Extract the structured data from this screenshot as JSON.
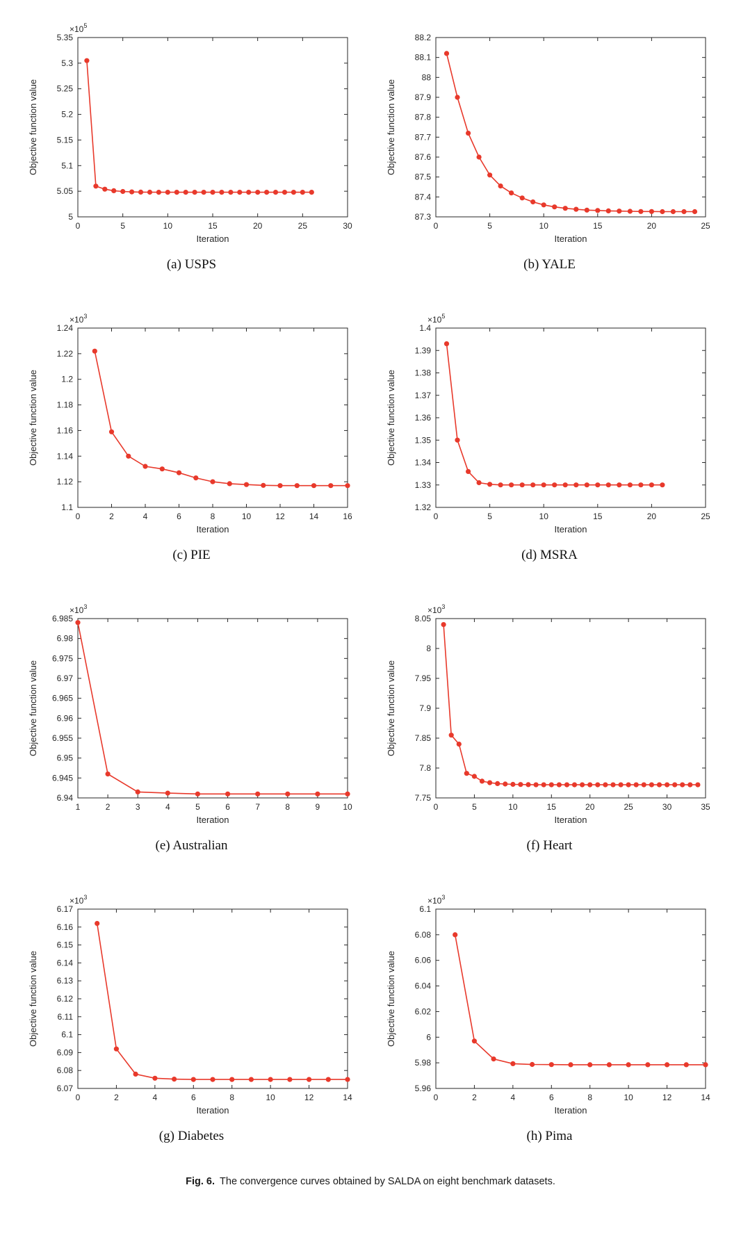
{
  "figure": {
    "caption_prefix": "Fig. 6.",
    "caption_text": "The convergence curves obtained by SALDA on eight benchmark datasets."
  },
  "style": {
    "line_color": "#e8392b",
    "marker_color": "#e8392b",
    "axis_color": "#262626"
  },
  "chart_data": [
    {
      "id": "usps",
      "type": "line",
      "label": "(a) USPS",
      "xlabel": "Iteration",
      "ylabel": "Objective function value",
      "y_exponent": "5",
      "xlim": [
        0,
        30
      ],
      "ylim": [
        5,
        5.35
      ],
      "xticks": [
        0,
        5,
        10,
        15,
        20,
        25,
        30
      ],
      "xtick_labels": [
        "0",
        "5",
        "10",
        "15",
        "20",
        "25",
        "30"
      ],
      "yticks": [
        5,
        5.05,
        5.1,
        5.15,
        5.2,
        5.25,
        5.3,
        5.35
      ],
      "ytick_labels": [
        "5",
        "5.05",
        "5.1",
        "5.15",
        "5.2",
        "5.25",
        "5.3",
        "5.35"
      ],
      "x_start": 1,
      "x_step": 1,
      "values": [
        5.305,
        5.06,
        5.054,
        5.051,
        5.0495,
        5.0487,
        5.0483,
        5.0481,
        5.048,
        5.048,
        5.048,
        5.048,
        5.048,
        5.048,
        5.048,
        5.048,
        5.048,
        5.048,
        5.048,
        5.048,
        5.048,
        5.048,
        5.048,
        5.048,
        5.048,
        5.048
      ]
    },
    {
      "id": "yale",
      "type": "line",
      "label": "(b) YALE",
      "xlabel": "Iteration",
      "ylabel": "Objective function value",
      "y_exponent": null,
      "xlim": [
        0,
        25
      ],
      "ylim": [
        87.3,
        88.2
      ],
      "xticks": [
        0,
        5,
        10,
        15,
        20,
        25
      ],
      "xtick_labels": [
        "0",
        "5",
        "10",
        "15",
        "20",
        "25"
      ],
      "yticks": [
        87.3,
        87.4,
        87.5,
        87.6,
        87.7,
        87.8,
        87.9,
        88,
        88.1,
        88.2
      ],
      "ytick_labels": [
        "87.3",
        "87.4",
        "87.5",
        "87.6",
        "87.7",
        "87.8",
        "87.9",
        "88",
        "88.1",
        "88.2"
      ],
      "x_start": 1,
      "x_step": 1,
      "values": [
        88.12,
        87.9,
        87.72,
        87.6,
        87.51,
        87.455,
        87.42,
        87.395,
        87.375,
        87.36,
        87.35,
        87.343,
        87.338,
        87.334,
        87.332,
        87.33,
        87.329,
        87.328,
        87.327,
        87.327,
        87.326,
        87.326,
        87.326,
        87.326
      ]
    },
    {
      "id": "pie",
      "type": "line",
      "label": "(c) PIE",
      "xlabel": "Iteration",
      "ylabel": "Objective function value",
      "y_exponent": "3",
      "xlim": [
        0,
        16
      ],
      "ylim": [
        1.1,
        1.24
      ],
      "xticks": [
        0,
        2,
        4,
        6,
        8,
        10,
        12,
        14,
        16
      ],
      "xtick_labels": [
        "0",
        "2",
        "4",
        "6",
        "8",
        "10",
        "12",
        "14",
        "16"
      ],
      "yticks": [
        1.1,
        1.12,
        1.14,
        1.16,
        1.18,
        1.2,
        1.22,
        1.24
      ],
      "ytick_labels": [
        "1.1",
        "1.12",
        "1.14",
        "1.16",
        "1.18",
        "1.2",
        "1.22",
        "1.24"
      ],
      "x_start": 1,
      "x_step": 1,
      "values": [
        1.222,
        1.159,
        1.14,
        1.132,
        1.13,
        1.127,
        1.123,
        1.12,
        1.1185,
        1.1178,
        1.1172,
        1.117,
        1.117,
        1.117,
        1.117,
        1.117
      ]
    },
    {
      "id": "msra",
      "type": "line",
      "label": "(d) MSRA",
      "xlabel": "Iteration",
      "ylabel": "Objective function value",
      "y_exponent": "5",
      "xlim": [
        0,
        25
      ],
      "ylim": [
        1.32,
        1.4
      ],
      "xticks": [
        0,
        5,
        10,
        15,
        20,
        25
      ],
      "xtick_labels": [
        "0",
        "5",
        "10",
        "15",
        "20",
        "25"
      ],
      "yticks": [
        1.32,
        1.33,
        1.34,
        1.35,
        1.36,
        1.37,
        1.38,
        1.39,
        1.4
      ],
      "ytick_labels": [
        "1.32",
        "1.33",
        "1.34",
        "1.35",
        "1.36",
        "1.37",
        "1.38",
        "1.39",
        "1.4"
      ],
      "x_start": 1,
      "x_step": 1,
      "values": [
        1.393,
        1.35,
        1.336,
        1.331,
        1.3303,
        1.33,
        1.33,
        1.33,
        1.33,
        1.33,
        1.33,
        1.33,
        1.33,
        1.33,
        1.33,
        1.33,
        1.33,
        1.33,
        1.33,
        1.33,
        1.33
      ]
    },
    {
      "id": "australian",
      "type": "line",
      "label": "(e) Australian",
      "xlabel": "Iteration",
      "ylabel": "Objective function value",
      "y_exponent": "3",
      "xlim": [
        1,
        10
      ],
      "ylim": [
        6.94,
        6.985
      ],
      "xticks": [
        1,
        2,
        3,
        4,
        5,
        6,
        7,
        8,
        9,
        10
      ],
      "xtick_labels": [
        "1",
        "2",
        "3",
        "4",
        "5",
        "6",
        "7",
        "8",
        "9",
        "10"
      ],
      "yticks": [
        6.94,
        6.945,
        6.95,
        6.955,
        6.96,
        6.965,
        6.97,
        6.975,
        6.98,
        6.985
      ],
      "ytick_labels": [
        "6.94",
        "6.945",
        "6.95",
        "6.955",
        "6.96",
        "6.965",
        "6.97",
        "6.975",
        "6.98",
        "6.985"
      ],
      "x_start": 1,
      "x_step": 1,
      "values": [
        6.984,
        6.946,
        6.9415,
        6.9412,
        6.941,
        6.941,
        6.941,
        6.941,
        6.941,
        6.941
      ]
    },
    {
      "id": "heart",
      "type": "line",
      "label": "(f) Heart",
      "xlabel": "Iteration",
      "ylabel": "Objective function value",
      "y_exponent": "3",
      "xlim": [
        0,
        35
      ],
      "ylim": [
        7.75,
        8.05
      ],
      "xticks": [
        0,
        5,
        10,
        15,
        20,
        25,
        30,
        35
      ],
      "xtick_labels": [
        "0",
        "5",
        "10",
        "15",
        "20",
        "25",
        "30",
        "35"
      ],
      "yticks": [
        7.75,
        7.8,
        7.85,
        7.9,
        7.95,
        8,
        8.05
      ],
      "ytick_labels": [
        "7.75",
        "7.8",
        "7.85",
        "7.9",
        "7.95",
        "8",
        "8.05"
      ],
      "x_start": 1,
      "x_step": 1,
      "values": [
        8.04,
        7.855,
        7.84,
        7.791,
        7.786,
        7.778,
        7.7755,
        7.774,
        7.7732,
        7.7727,
        7.7724,
        7.7722,
        7.772,
        7.772,
        7.772,
        7.772,
        7.772,
        7.772,
        7.772,
        7.772,
        7.772,
        7.772,
        7.772,
        7.772,
        7.772,
        7.772,
        7.772,
        7.772,
        7.772,
        7.772,
        7.772,
        7.772,
        7.772,
        7.772
      ]
    },
    {
      "id": "diabetes",
      "type": "line",
      "label": "(g) Diabetes",
      "xlabel": "Iteration",
      "ylabel": "Objective function value",
      "y_exponent": "3",
      "xlim": [
        0,
        14
      ],
      "ylim": [
        6.07,
        6.17
      ],
      "xticks": [
        0,
        2,
        4,
        6,
        8,
        10,
        12,
        14
      ],
      "xtick_labels": [
        "0",
        "2",
        "4",
        "6",
        "8",
        "10",
        "12",
        "14"
      ],
      "yticks": [
        6.07,
        6.08,
        6.09,
        6.1,
        6.11,
        6.12,
        6.13,
        6.14,
        6.15,
        6.16,
        6.17
      ],
      "ytick_labels": [
        "6.07",
        "6.08",
        "6.09",
        "6.1",
        "6.11",
        "6.12",
        "6.13",
        "6.14",
        "6.15",
        "6.16",
        "6.17"
      ],
      "x_start": 1,
      "x_step": 1,
      "values": [
        6.162,
        6.092,
        6.078,
        6.0757,
        6.0752,
        6.075,
        6.075,
        6.075,
        6.075,
        6.075,
        6.075,
        6.075,
        6.075,
        6.075
      ]
    },
    {
      "id": "pima",
      "type": "line",
      "label": "(h) Pima",
      "xlabel": "Iteration",
      "ylabel": "Objective function value",
      "y_exponent": "3",
      "xlim": [
        0,
        14
      ],
      "ylim": [
        5.96,
        6.1
      ],
      "xticks": [
        0,
        2,
        4,
        6,
        8,
        10,
        12,
        14
      ],
      "xtick_labels": [
        "0",
        "2",
        "4",
        "6",
        "8",
        "10",
        "12",
        "14"
      ],
      "yticks": [
        5.96,
        5.98,
        6,
        6.02,
        6.04,
        6.06,
        6.08,
        6.1
      ],
      "ytick_labels": [
        "5.96",
        "5.98",
        "6",
        "6.02",
        "6.04",
        "6.06",
        "6.08",
        "6.1"
      ],
      "x_start": 1,
      "x_step": 1,
      "values": [
        6.08,
        5.997,
        5.983,
        5.9793,
        5.9787,
        5.9786,
        5.9785,
        5.9785,
        5.9785,
        5.9785,
        5.9785,
        5.9785,
        5.9785,
        5.9785
      ]
    }
  ]
}
